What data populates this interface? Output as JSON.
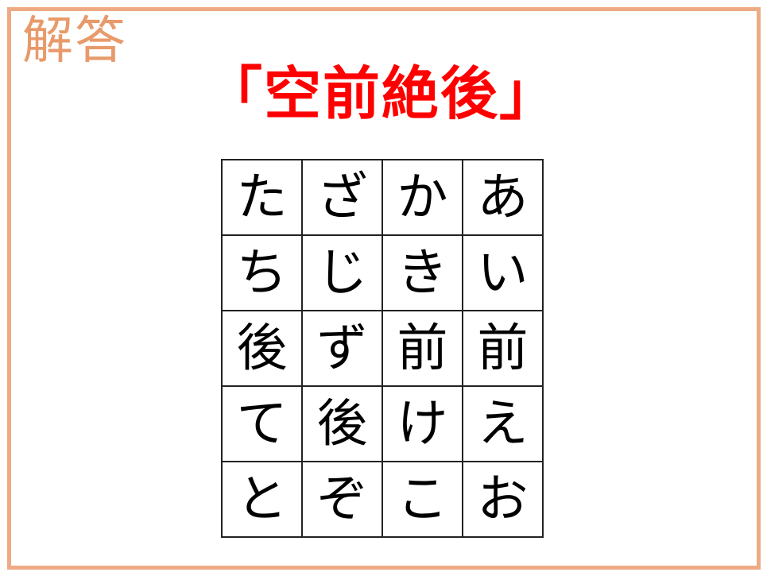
{
  "heading": "解答",
  "answer": "「空前絶後」",
  "grid": [
    [
      "た",
      "ざ",
      "か",
      "あ"
    ],
    [
      "ち",
      "じ",
      "き",
      "い"
    ],
    [
      "後",
      "ず",
      "前",
      "前"
    ],
    [
      "て",
      "後",
      "け",
      "え"
    ],
    [
      "と",
      "ぞ",
      "こ",
      "お"
    ]
  ],
  "colors": {
    "frame": "#eeaa84",
    "heading": "#e89a6a",
    "answer": "#ff0000"
  }
}
